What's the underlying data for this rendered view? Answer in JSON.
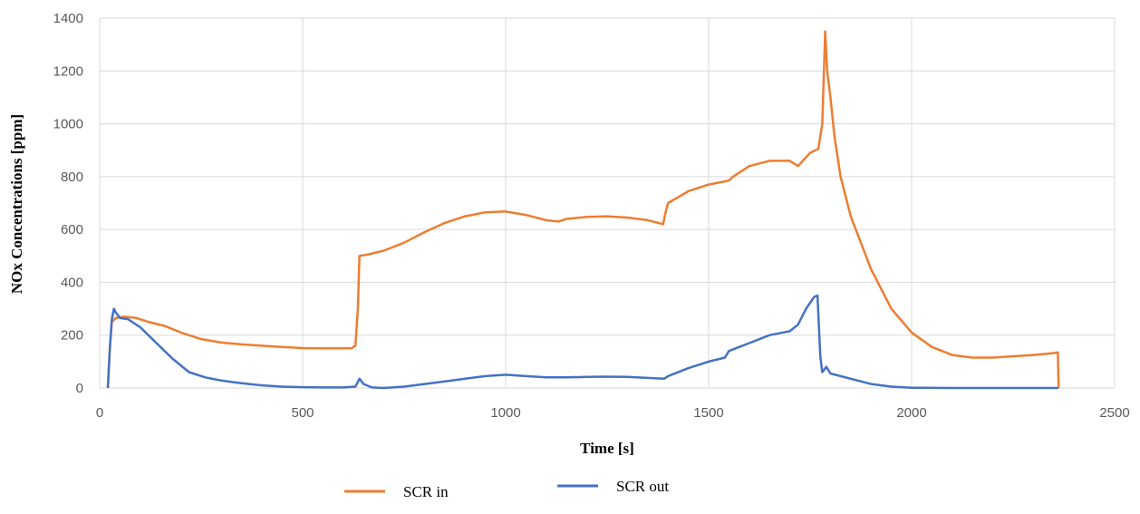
{
  "chart_data": {
    "type": "line",
    "xlabel": "Time [s]",
    "ylabel": "NOx Concentrations   [ppm]",
    "xlim": [
      0,
      2500
    ],
    "ylim": [
      0,
      1400
    ],
    "x_ticks": [
      "0",
      "500",
      "1000",
      "1500",
      "2000",
      "2500"
    ],
    "y_ticks": [
      "0",
      "200",
      "400",
      "600",
      "800",
      "1000",
      "1200",
      "1400"
    ],
    "grid": true,
    "legend_position": "bottom",
    "series": [
      {
        "name": "SCR in",
        "color": "#ed7d31",
        "points": [
          [
            20,
            0
          ],
          [
            25,
            150
          ],
          [
            30,
            250
          ],
          [
            40,
            265
          ],
          [
            60,
            270
          ],
          [
            90,
            265
          ],
          [
            120,
            250
          ],
          [
            160,
            235
          ],
          [
            200,
            210
          ],
          [
            250,
            185
          ],
          [
            300,
            172
          ],
          [
            350,
            165
          ],
          [
            400,
            160
          ],
          [
            450,
            155
          ],
          [
            500,
            151
          ],
          [
            550,
            150
          ],
          [
            620,
            150
          ],
          [
            630,
            160
          ],
          [
            636,
            300
          ],
          [
            640,
            500
          ],
          [
            660,
            505
          ],
          [
            700,
            520
          ],
          [
            750,
            550
          ],
          [
            800,
            590
          ],
          [
            850,
            625
          ],
          [
            900,
            650
          ],
          [
            950,
            665
          ],
          [
            1000,
            668
          ],
          [
            1050,
            655
          ],
          [
            1100,
            635
          ],
          [
            1130,
            630
          ],
          [
            1150,
            640
          ],
          [
            1200,
            648
          ],
          [
            1250,
            650
          ],
          [
            1300,
            645
          ],
          [
            1350,
            635
          ],
          [
            1388,
            620
          ],
          [
            1393,
            660
          ],
          [
            1400,
            700
          ],
          [
            1450,
            745
          ],
          [
            1500,
            770
          ],
          [
            1550,
            785
          ],
          [
            1560,
            800
          ],
          [
            1600,
            840
          ],
          [
            1650,
            860
          ],
          [
            1700,
            860
          ],
          [
            1720,
            840
          ],
          [
            1750,
            890
          ],
          [
            1770,
            905
          ],
          [
            1780,
            1000
          ],
          [
            1787,
            1350
          ],
          [
            1792,
            1200
          ],
          [
            1800,
            1100
          ],
          [
            1810,
            950
          ],
          [
            1825,
            800
          ],
          [
            1850,
            650
          ],
          [
            1900,
            450
          ],
          [
            1950,
            300
          ],
          [
            2000,
            210
          ],
          [
            2050,
            155
          ],
          [
            2100,
            125
          ],
          [
            2150,
            115
          ],
          [
            2200,
            115
          ],
          [
            2250,
            120
          ],
          [
            2300,
            125
          ],
          [
            2350,
            132
          ],
          [
            2360,
            135
          ],
          [
            2362,
            0
          ]
        ]
      },
      {
        "name": "SCR out",
        "color": "#4472c4",
        "points": [
          [
            20,
            0
          ],
          [
            25,
            150
          ],
          [
            30,
            260
          ],
          [
            35,
            300
          ],
          [
            40,
            285
          ],
          [
            50,
            265
          ],
          [
            70,
            260
          ],
          [
            100,
            230
          ],
          [
            140,
            170
          ],
          [
            180,
            110
          ],
          [
            220,
            60
          ],
          [
            260,
            40
          ],
          [
            300,
            28
          ],
          [
            350,
            18
          ],
          [
            400,
            10
          ],
          [
            450,
            5
          ],
          [
            500,
            3
          ],
          [
            550,
            2
          ],
          [
            600,
            2
          ],
          [
            630,
            5
          ],
          [
            640,
            35
          ],
          [
            650,
            15
          ],
          [
            670,
            2
          ],
          [
            700,
            0
          ],
          [
            750,
            5
          ],
          [
            800,
            15
          ],
          [
            850,
            25
          ],
          [
            900,
            35
          ],
          [
            950,
            45
          ],
          [
            1000,
            50
          ],
          [
            1050,
            45
          ],
          [
            1100,
            40
          ],
          [
            1150,
            40
          ],
          [
            1200,
            42
          ],
          [
            1250,
            43
          ],
          [
            1300,
            42
          ],
          [
            1350,
            38
          ],
          [
            1390,
            35
          ],
          [
            1400,
            45
          ],
          [
            1450,
            75
          ],
          [
            1500,
            100
          ],
          [
            1540,
            115
          ],
          [
            1550,
            140
          ],
          [
            1600,
            170
          ],
          [
            1650,
            200
          ],
          [
            1700,
            215
          ],
          [
            1720,
            240
          ],
          [
            1740,
            300
          ],
          [
            1760,
            345
          ],
          [
            1768,
            350
          ],
          [
            1775,
            120
          ],
          [
            1780,
            60
          ],
          [
            1790,
            80
          ],
          [
            1800,
            55
          ],
          [
            1850,
            35
          ],
          [
            1900,
            15
          ],
          [
            1950,
            5
          ],
          [
            2000,
            1
          ],
          [
            2100,
            0
          ],
          [
            2200,
            0
          ],
          [
            2300,
            0
          ],
          [
            2362,
            0
          ]
        ]
      }
    ]
  }
}
